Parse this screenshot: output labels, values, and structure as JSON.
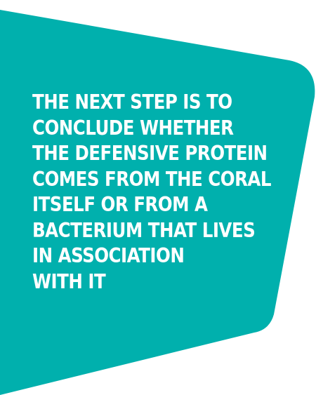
{
  "panel": {
    "background_color": "#00b0ad",
    "text_color": "#ffffff"
  },
  "quote": {
    "lines": [
      "THE NEXT STEP IS TO",
      "CONCLUDE WHETHER",
      "THE DEFENSIVE PROTEIN",
      "COMES FROM THE CORAL",
      "ITSELF OR FROM A",
      "BACTERIUM THAT LIVES",
      "IN ASSOCIATION",
      "WITH IT"
    ]
  }
}
